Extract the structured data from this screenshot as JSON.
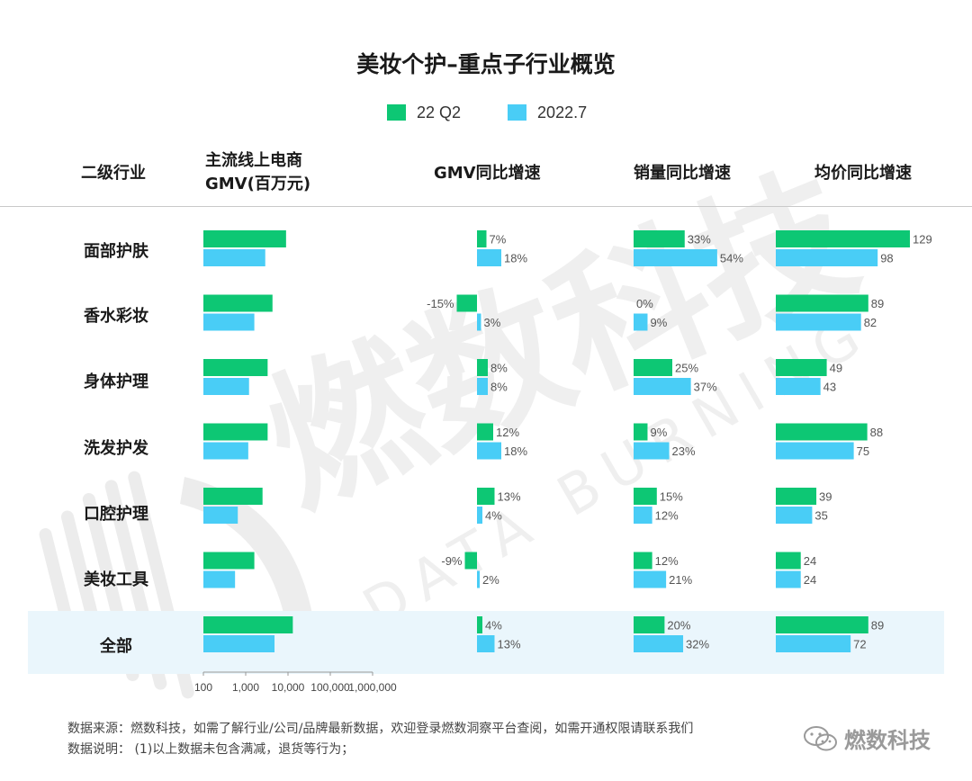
{
  "page": {
    "title": "美妆个护–重点子行业概览",
    "footer_source": "数据来源：燃数科技，如需了解行业/公司/品牌最新数据，欢迎登录燃数洞察平台查阅，如需开通权限请联系我们",
    "footer_note": "数据说明：  (1)以上数据未包含满减，退货等行为；",
    "brand": "燃数科技",
    "watermark_cn": "燃数科技",
    "watermark_en": "DATA BURNING"
  },
  "colors": {
    "series_1": "#0dc774",
    "series_2": "#49cdf6",
    "total_band": "#eaf6fc"
  },
  "chart_data": {
    "type": "bar",
    "orientation": "horizontal",
    "title": "美妆个护–重点子行业概览",
    "legend": {
      "position": "top-center",
      "entries": [
        "22 Q2",
        "2022.7"
      ]
    },
    "category_header": "二级行业",
    "categories": [
      "面部护肤",
      "香水彩妆",
      "身体护理",
      "洗发护发",
      "口腔护理",
      "美妆工具",
      "全部"
    ],
    "panels": [
      {
        "header_line1": "主流线上电商",
        "header_line2": "GMV(百万元)",
        "scale": "log",
        "axis_ticks": [
          "100",
          "1,000",
          "10,000",
          "100,000",
          "1,000,000"
        ],
        "xlim": [
          100,
          1000000
        ],
        "show_labels": false,
        "series": [
          {
            "name": "22 Q2",
            "values": [
              9000,
              4300,
              3300,
              3300,
              2500,
              1600,
              13000
            ]
          },
          {
            "name": "2022.7",
            "values": [
              2900,
              1600,
              1200,
              1150,
              650,
              560,
              4800
            ]
          }
        ]
      },
      {
        "header_line1": "GMV同比增速",
        "scale": "linear",
        "unit": "%",
        "series": [
          {
            "name": "22 Q2",
            "values": [
              7,
              -15,
              8,
              12,
              13,
              -9,
              4
            ],
            "labels": [
              "7%",
              "-15%",
              "8%",
              "12%",
              "13%",
              "-9%",
              "4%"
            ]
          },
          {
            "name": "2022.7",
            "values": [
              18,
              3,
              8,
              18,
              4,
              2,
              13
            ],
            "labels": [
              "18%",
              "3%",
              "8%",
              "18%",
              "4%",
              "2%",
              "13%"
            ]
          }
        ]
      },
      {
        "header_line1": "销量同比增速",
        "scale": "linear",
        "unit": "%",
        "series": [
          {
            "name": "22 Q2",
            "values": [
              33,
              0,
              25,
              9,
              15,
              12,
              20
            ],
            "labels": [
              "33%",
              "0%",
              "25%",
              "9%",
              "15%",
              "12%",
              "20%"
            ]
          },
          {
            "name": "2022.7",
            "values": [
              54,
              9,
              37,
              23,
              12,
              21,
              32
            ],
            "labels": [
              "54%",
              "9%",
              "37%",
              "23%",
              "12%",
              "21%",
              "32%"
            ]
          }
        ]
      },
      {
        "header_line1": "均价同比增速",
        "scale": "linear",
        "series": [
          {
            "name": "22 Q2",
            "values": [
              129,
              89,
              49,
              88,
              39,
              24,
              89
            ],
            "labels": [
              "129",
              "89",
              "49",
              "88",
              "39",
              "24",
              "89"
            ]
          },
          {
            "name": "2022.7",
            "values": [
              98,
              82,
              43,
              75,
              35,
              24,
              72
            ],
            "labels": [
              "98",
              "82",
              "43",
              "75",
              "35",
              "24",
              "72"
            ]
          }
        ]
      }
    ]
  }
}
